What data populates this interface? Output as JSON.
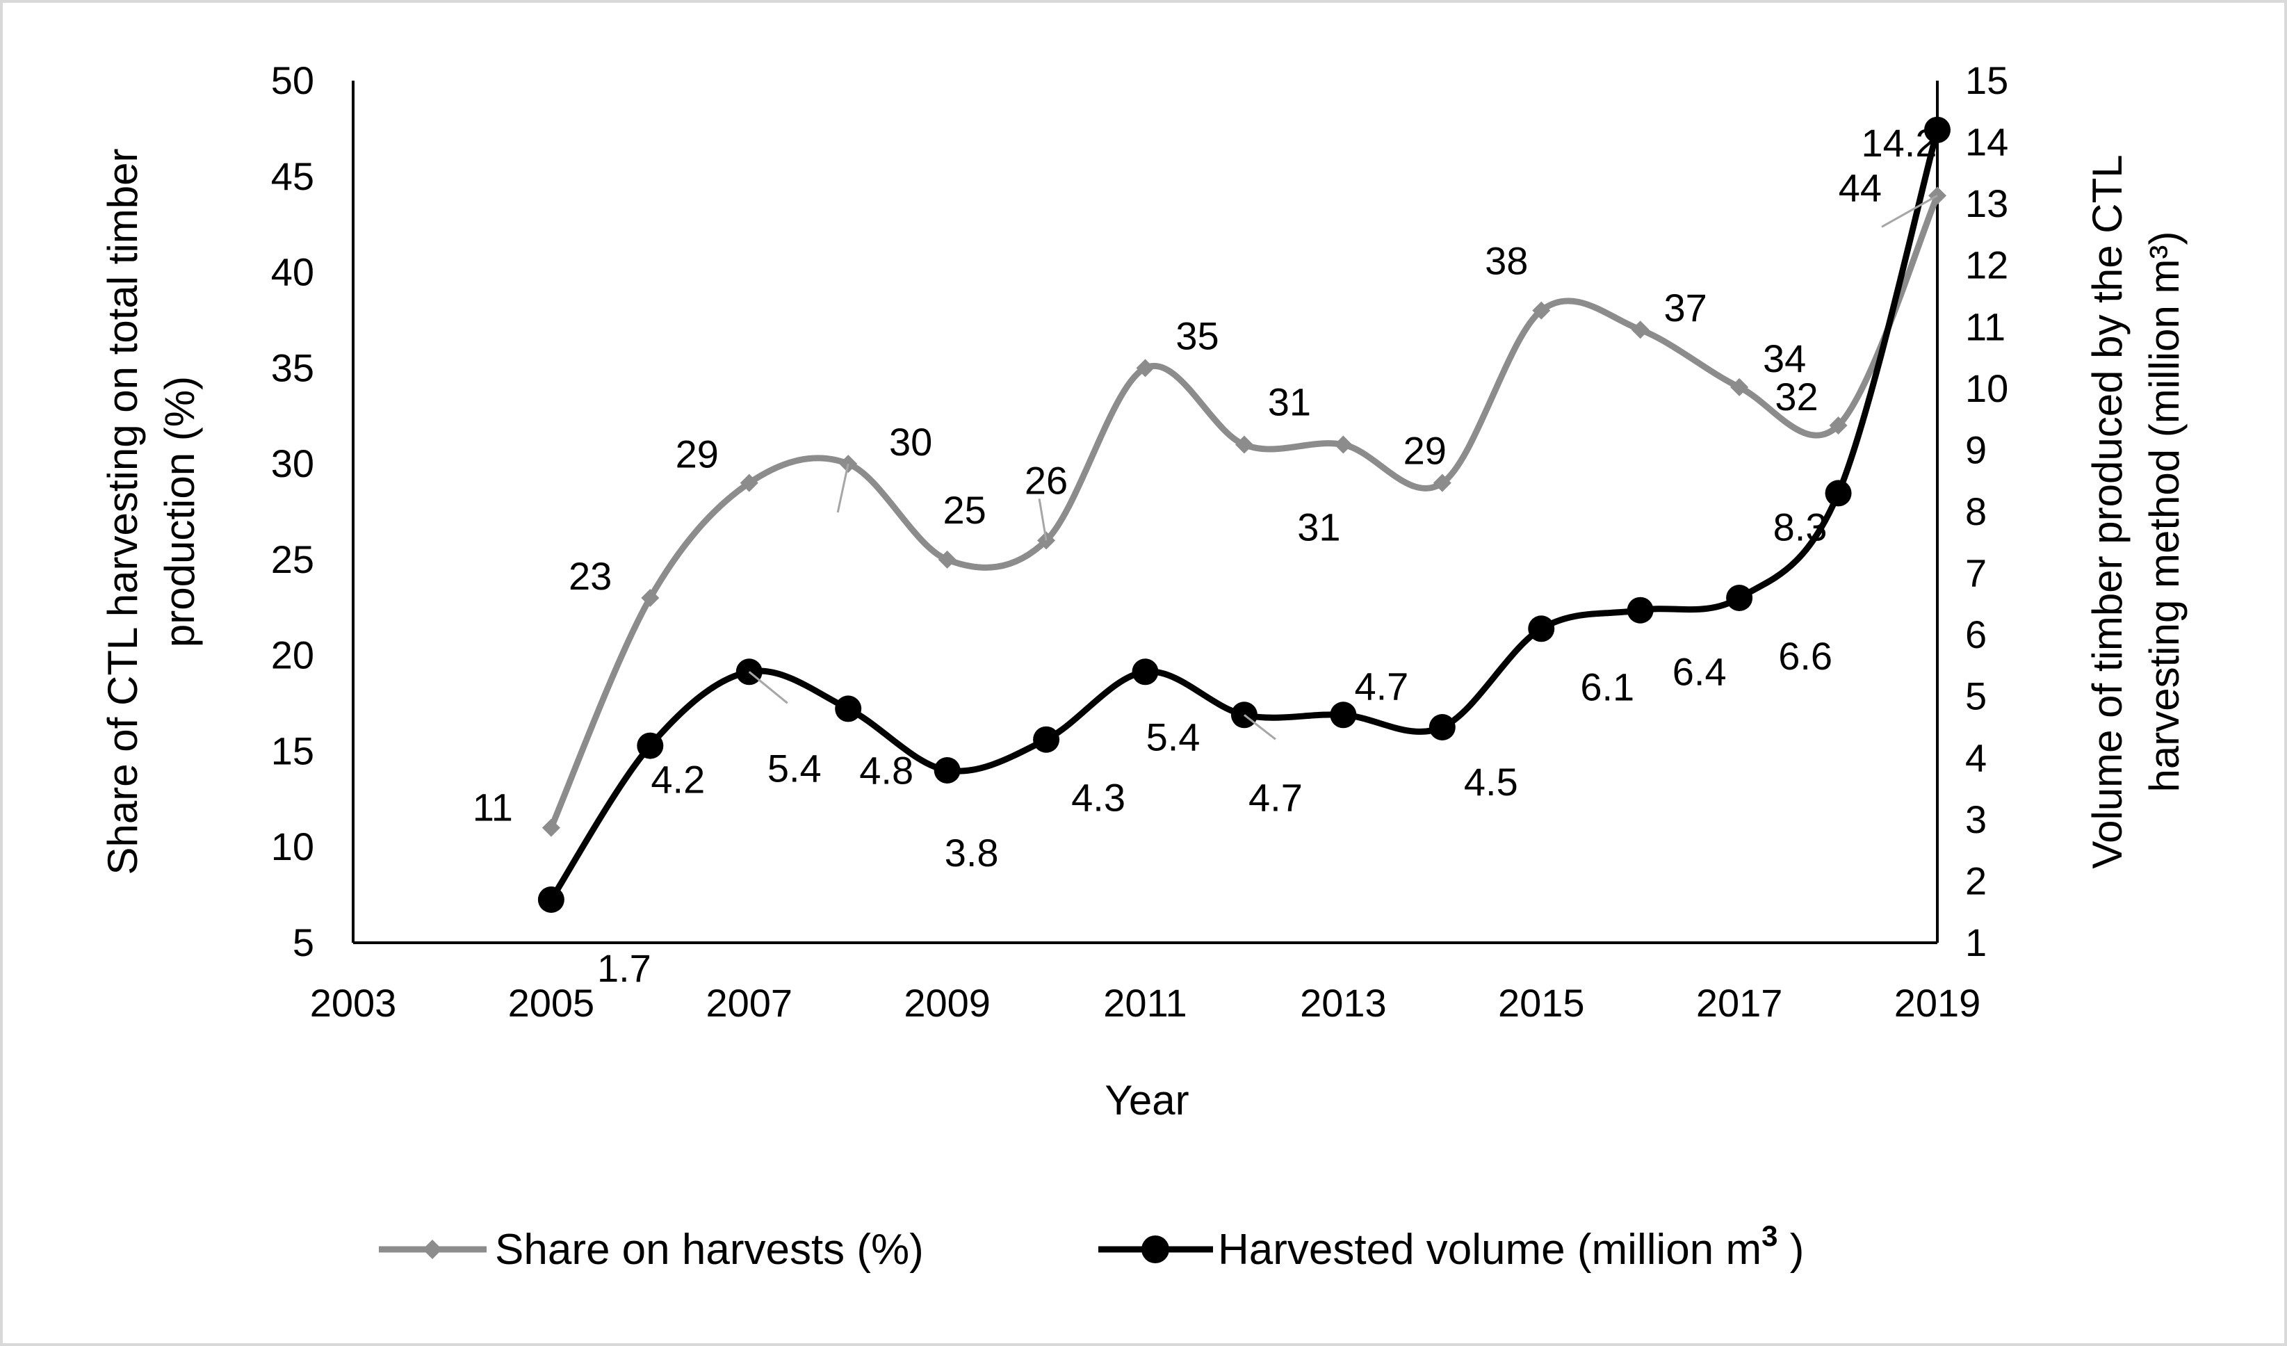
{
  "chart_data": {
    "type": "line",
    "title": "",
    "xlabel": "Year",
    "ylabel": "Share of CTL harvesting on total timber production (%)",
    "ylabel_lines": [
      "Share of CTL harvesting on total timber",
      "production (%)"
    ],
    "y2label": "Volume of timber produced by the CTL harvesting method (million m³)",
    "y2label_lines": [
      "Volume of timber produced by the CTL",
      "harvesting method (million m³)"
    ],
    "xlim": [
      2003,
      2019
    ],
    "xticks": [
      2003,
      2005,
      2007,
      2009,
      2011,
      2013,
      2015,
      2017,
      2019
    ],
    "ylim": [
      5,
      50
    ],
    "yticks": [
      5,
      10,
      15,
      20,
      25,
      30,
      35,
      40,
      45,
      50
    ],
    "y2lim": [
      1,
      15
    ],
    "y2ticks": [
      1,
      2,
      3,
      4,
      5,
      6,
      7,
      8,
      9,
      10,
      11,
      12,
      13,
      14,
      15
    ],
    "grid": false,
    "legend_position": "bottom",
    "series": [
      {
        "name": "Share on harvests (%)",
        "axis": "left",
        "color": "#8c8c8c",
        "marker": "diamond",
        "smooth": true,
        "x": [
          2005,
          2006,
          2007,
          2008,
          2009,
          2010,
          2011,
          2012,
          2013,
          2014,
          2015,
          2016,
          2017,
          2018,
          2019
        ],
        "values": [
          11,
          23,
          29,
          30,
          25,
          26,
          35,
          31,
          31,
          29,
          38,
          37,
          34,
          32,
          44
        ],
        "labels": [
          "11",
          "23",
          "29",
          "30",
          "25",
          "26",
          "35",
          "31",
          "31",
          "29",
          "38",
          "37",
          "34",
          "32",
          "44"
        ]
      },
      {
        "name": "Harvested volume (million m",
        "name_sup": "3",
        "name_suffix": " )",
        "axis": "right",
        "color": "#000000",
        "marker": "circle",
        "smooth": true,
        "x": [
          2005,
          2006,
          2007,
          2008,
          2009,
          2010,
          2011,
          2012,
          2013,
          2014,
          2015,
          2016,
          2017,
          2018,
          2019
        ],
        "values": [
          1.7,
          4.2,
          5.4,
          4.8,
          3.8,
          4.3,
          5.4,
          4.7,
          4.7,
          4.5,
          6.1,
          6.4,
          6.6,
          8.3,
          14.2
        ],
        "labels": [
          "1.7",
          "4.2",
          "5.4",
          "4.8",
          "3.8",
          "4.3",
          "5.4",
          "4.7",
          "4.7",
          "4.5",
          "6.1",
          "6.4",
          "6.6",
          "8.3",
          "14.2"
        ]
      }
    ]
  }
}
